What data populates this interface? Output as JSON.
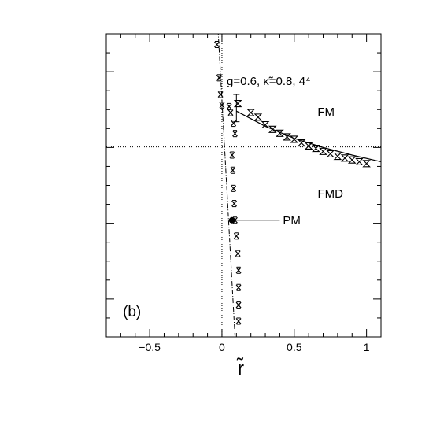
{
  "chart_data": {
    "type": "scatter",
    "panel_label": "(b)",
    "params_label": "g=0.6, κ̃=0.8, 4⁴",
    "xlabel": "r̃",
    "ylabel": "",
    "xlim": [
      -0.8,
      1.1
    ],
    "ylim": [
      0,
      1
    ],
    "xticks": [
      {
        "v": -0.5,
        "label": "−0.5"
      },
      {
        "v": 0,
        "label": "0"
      },
      {
        "v": 0.5,
        "label": "0.5"
      },
      {
        "v": 1,
        "label": "1"
      }
    ],
    "x_minor_step": 0.1,
    "y_major_ticks": [
      0.125,
      0.375,
      0.625,
      0.875
    ],
    "y_minor_step": 0.0625,
    "grid": false,
    "reference_lines": {
      "vertical_x": 0,
      "horizontal_y": 0.627
    },
    "regions": [
      {
        "label": "FM",
        "x": 0.72,
        "y": 0.73
      },
      {
        "label": "FMD",
        "x": 0.75,
        "y": 0.46
      }
    ],
    "annotation": {
      "label": "PM",
      "point_x": 0.07,
      "point_y": 0.385,
      "label_x": 0.4
    },
    "series": [
      {
        "style": "dash-dot-fit",
        "points": [
          [
            -0.03,
            1.04
          ],
          [
            0.095,
            -0.04
          ]
        ]
      },
      {
        "style": "solid-fit",
        "points": [
          [
            0.1,
            0.745
          ],
          [
            0.3,
            0.695
          ],
          [
            0.5,
            0.655
          ],
          [
            0.7,
            0.625
          ],
          [
            0.9,
            0.6
          ],
          [
            1.1,
            0.578
          ]
        ]
      },
      {
        "style": "cross-errorbar",
        "points": [
          [
            -0.035,
            0.965
          ],
          [
            -0.02,
            0.855
          ],
          [
            -0.01,
            0.8
          ],
          [
            0.0,
            0.7645
          ],
          [
            0.05,
            0.76
          ],
          [
            0.06,
            0.74
          ],
          [
            0.08,
            0.705
          ],
          [
            0.09,
            0.671
          ],
          [
            0.07,
            0.6
          ],
          [
            0.075,
            0.55
          ],
          [
            0.08,
            0.49
          ],
          [
            0.085,
            0.44
          ],
          [
            0.09,
            0.385
          ],
          [
            0.1,
            0.333
          ],
          [
            0.11,
            0.275
          ],
          [
            0.115,
            0.22
          ],
          [
            0.115,
            0.163
          ],
          [
            0.115,
            0.105
          ],
          [
            0.115,
            0.052
          ]
        ]
      },
      {
        "style": "hourglass-errorbar",
        "points": [
          [
            0.11,
            0.77
          ],
          [
            0.2,
            0.74
          ],
          [
            0.25,
            0.725
          ],
          [
            0.3,
            0.7
          ],
          [
            0.35,
            0.685
          ],
          [
            0.4,
            0.672
          ],
          [
            0.45,
            0.66
          ],
          [
            0.5,
            0.652
          ],
          [
            0.55,
            0.64
          ],
          [
            0.6,
            0.63
          ],
          [
            0.65,
            0.622
          ],
          [
            0.7,
            0.612
          ],
          [
            0.75,
            0.604
          ],
          [
            0.8,
            0.596
          ],
          [
            0.85,
            0.59
          ],
          [
            0.9,
            0.584
          ],
          [
            0.95,
            0.578
          ],
          [
            1.0,
            0.572
          ]
        ]
      }
    ],
    "error_bar": {
      "x": 0.1,
      "y": 0.76,
      "y_low": 0.71,
      "y_high": 0.8
    }
  }
}
